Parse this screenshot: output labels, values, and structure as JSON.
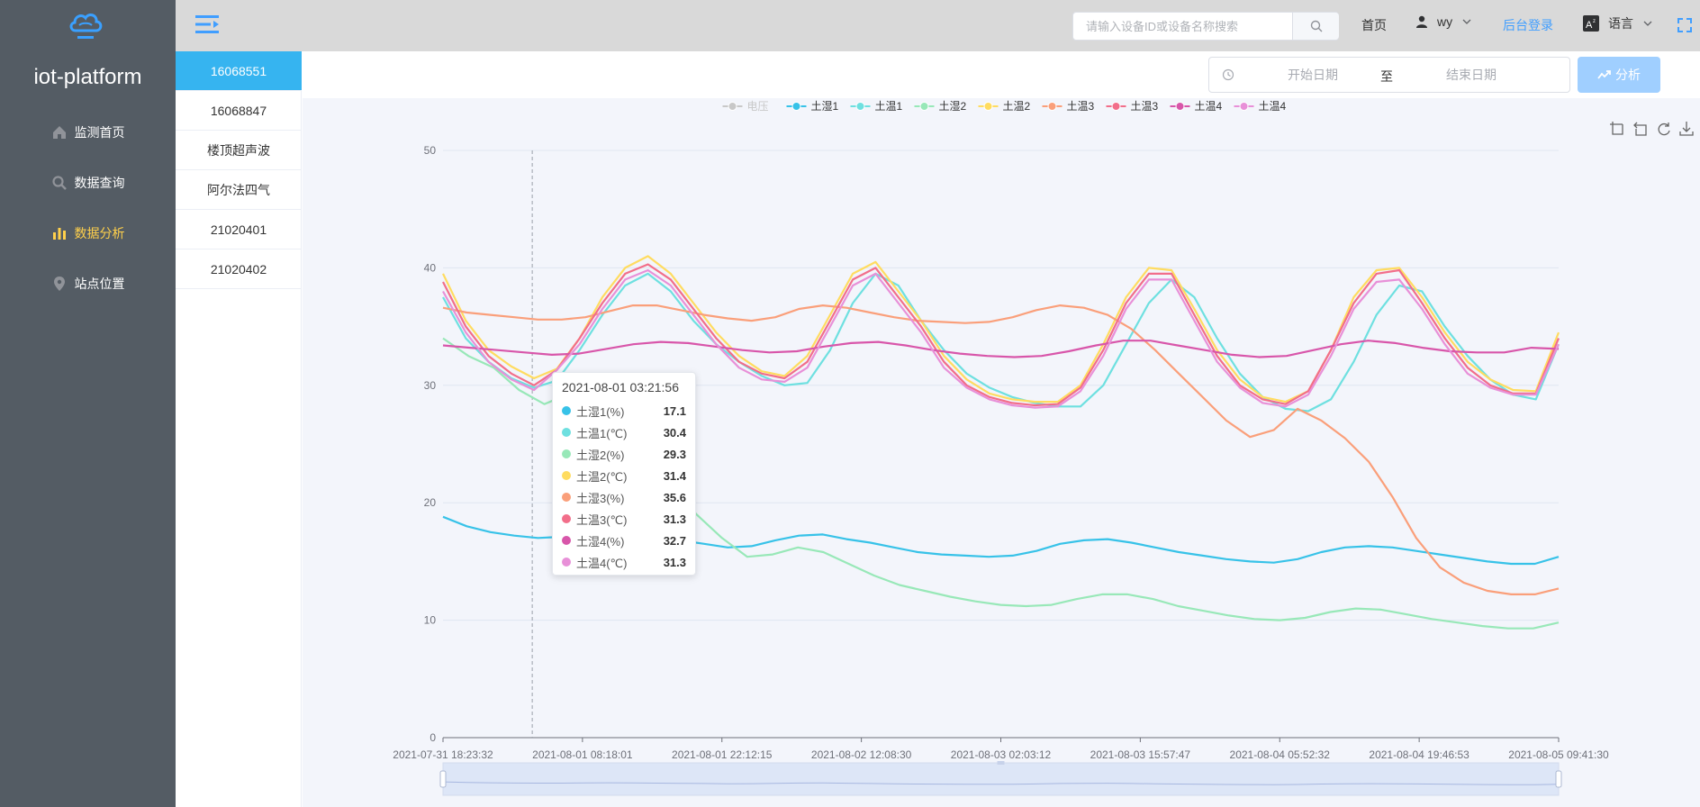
{
  "app": {
    "title": "iot-platform"
  },
  "sidebar": {
    "items": [
      {
        "label": "监测首页",
        "icon": "home-icon"
      },
      {
        "label": "数据查询",
        "icon": "search-icon"
      },
      {
        "label": "数据分析",
        "icon": "bar-chart-icon",
        "active": true
      },
      {
        "label": "站点位置",
        "icon": "location-pin-icon"
      }
    ]
  },
  "header": {
    "search_placeholder": "请输入设备ID或设备名称搜索",
    "home_label": "首页",
    "user_name": "wy",
    "admin_label": "后台登录",
    "language_label": "语言"
  },
  "devices": {
    "items": [
      {
        "label": "16068551",
        "active": true
      },
      {
        "label": "16068847"
      },
      {
        "label": "楼顶超声波"
      },
      {
        "label": "阿尔法四气"
      },
      {
        "label": "21020401"
      },
      {
        "label": "21020402"
      }
    ]
  },
  "toolbar": {
    "start_placeholder": "开始日期",
    "separator": "至",
    "end_placeholder": "结束日期",
    "analyze_label": "分析"
  },
  "colors": {
    "accent": "#409eff",
    "sidebar_bg": "#545c64",
    "active_menu": "#ffd04b",
    "active_device": "#36b4f0"
  },
  "chart_data": {
    "type": "line",
    "legend_position": "top-center",
    "grid": true,
    "ylim": [
      0,
      50
    ],
    "y_ticks": [
      0,
      10,
      20,
      30,
      40,
      50
    ],
    "x_ticks": [
      "2021-07-31 18:23:32",
      "2021-08-01 08:18:01",
      "2021-08-01 22:12:15",
      "2021-08-02 12:08:30",
      "2021-08-03 02:03:12",
      "2021-08-03 15:57:47",
      "2021-08-04 05:52:32",
      "2021-08-04 19:46:53",
      "2021-08-05 09:41:30"
    ],
    "legend": [
      {
        "name": "电压",
        "color": "#c8c8c8",
        "disabled": true
      },
      {
        "name": "土湿1",
        "color": "#37c2e8"
      },
      {
        "name": "土温1",
        "color": "#6ee0e0"
      },
      {
        "name": "土湿2",
        "color": "#98e8b8"
      },
      {
        "name": "土温2",
        "color": "#ffdc60"
      },
      {
        "name": "土温3",
        "color": "#fa9f7a"
      },
      {
        "name": "土温3",
        "color": "#f26e8a"
      },
      {
        "name": "土温4",
        "color": "#d856aa"
      },
      {
        "name": "土温4",
        "color": "#e890d8"
      }
    ],
    "series": [
      {
        "key": "s1",
        "color": "#37c2e8",
        "values": [
          18.8,
          18.0,
          17.5,
          17.2,
          17.0,
          17.1,
          17.3,
          17.5,
          17.3,
          17.0,
          16.8,
          16.5,
          16.2,
          16.3,
          16.8,
          17.2,
          17.3,
          16.9,
          16.6,
          16.2,
          15.8,
          15.6,
          15.5,
          15.4,
          15.5,
          15.9,
          16.5,
          16.8,
          16.9,
          16.6,
          16.2,
          15.8,
          15.5,
          15.2,
          15.0,
          14.9,
          15.2,
          15.8,
          16.2,
          16.3,
          16.2,
          15.9,
          15.6,
          15.3,
          15.0,
          14.8,
          14.8,
          15.4
        ]
      },
      {
        "key": "s2",
        "color": "#6ee0e0",
        "values": [
          37.5,
          34.0,
          32.0,
          30.6,
          29.8,
          30.4,
          33.0,
          36.0,
          38.5,
          39.5,
          38.0,
          35.5,
          33.5,
          32.0,
          30.8,
          30.0,
          30.2,
          33.0,
          37.0,
          39.5,
          38.5,
          35.5,
          33.0,
          31.0,
          29.8,
          29.0,
          28.5,
          28.2,
          28.2,
          30.0,
          33.5,
          37.0,
          39.0,
          37.5,
          34.0,
          31.0,
          29.0,
          28.0,
          27.8,
          28.8,
          32.0,
          36.0,
          38.5,
          38.0,
          35.0,
          32.5,
          30.5,
          29.2,
          28.8,
          33.5
        ]
      },
      {
        "key": "s3",
        "color": "#98e8b8",
        "values": [
          34.0,
          32.5,
          31.5,
          29.6,
          28.4,
          29.3,
          29.8,
          26.5,
          24.0,
          21.5,
          19.0,
          17.0,
          15.4,
          15.6,
          16.2,
          15.8,
          14.8,
          13.8,
          13.0,
          12.5,
          12.0,
          11.6,
          11.3,
          11.2,
          11.3,
          11.8,
          12.2,
          12.2,
          11.8,
          11.2,
          10.8,
          10.4,
          10.1,
          10.0,
          10.2,
          10.7,
          11.0,
          10.9,
          10.5,
          10.1,
          9.8,
          9.5,
          9.3,
          9.3,
          9.8
        ]
      },
      {
        "key": "s4",
        "color": "#ffdc60",
        "values": [
          39.5,
          35.5,
          33.0,
          31.6,
          30.6,
          31.4,
          34.0,
          37.5,
          40.0,
          41.0,
          39.5,
          37.0,
          34.5,
          32.5,
          31.2,
          30.8,
          32.5,
          36.0,
          39.5,
          40.5,
          38.0,
          35.5,
          32.5,
          30.5,
          29.3,
          28.8,
          28.6,
          28.6,
          30.0,
          33.5,
          37.5,
          40.0,
          39.8,
          36.5,
          33.0,
          30.5,
          29.0,
          28.6,
          29.5,
          33.0,
          37.5,
          39.8,
          40.0,
          37.5,
          34.5,
          32.0,
          30.5,
          29.6,
          29.5,
          34.5
        ]
      },
      {
        "key": "s5",
        "color": "#fa9f7a",
        "values": [
          36.6,
          36.2,
          36.0,
          35.8,
          35.6,
          35.6,
          35.8,
          36.3,
          36.8,
          36.8,
          36.4,
          36.0,
          35.7,
          35.5,
          35.8,
          36.5,
          36.8,
          36.6,
          36.2,
          35.8,
          35.5,
          35.4,
          35.3,
          35.4,
          35.8,
          36.4,
          36.8,
          36.6,
          36.0,
          34.8,
          33.0,
          31.0,
          29.0,
          27.0,
          25.6,
          26.2,
          28.0,
          27.0,
          25.5,
          23.5,
          20.5,
          17.0,
          14.5,
          13.2,
          12.5,
          12.2,
          12.2,
          12.7
        ]
      },
      {
        "key": "s6",
        "color": "#f26e8a",
        "values": [
          38.8,
          35.0,
          32.5,
          31.0,
          30.0,
          31.3,
          34.0,
          37.0,
          39.5,
          40.3,
          39.0,
          36.5,
          34.0,
          32.0,
          31.0,
          30.6,
          32.0,
          35.5,
          39.0,
          40.0,
          37.5,
          35.0,
          32.0,
          30.0,
          29.0,
          28.5,
          28.3,
          28.4,
          29.8,
          33.0,
          37.0,
          39.5,
          39.5,
          36.0,
          32.5,
          30.0,
          28.8,
          28.4,
          29.5,
          33.0,
          37.0,
          39.5,
          39.8,
          37.0,
          34.0,
          31.5,
          30.0,
          29.3,
          29.3,
          34.0
        ]
      },
      {
        "key": "s7",
        "color": "#d856aa",
        "values": [
          33.4,
          33.2,
          33.0,
          32.8,
          32.6,
          32.7,
          33.1,
          33.5,
          33.7,
          33.6,
          33.3,
          33.0,
          32.8,
          32.9,
          33.3,
          33.6,
          33.7,
          33.4,
          33.0,
          32.7,
          32.5,
          32.4,
          32.5,
          32.9,
          33.4,
          33.8,
          33.8,
          33.4,
          33.0,
          32.6,
          32.4,
          32.5,
          33.0,
          33.5,
          33.8,
          33.6,
          33.2,
          32.9,
          32.8,
          32.8,
          33.2,
          33.1
        ]
      },
      {
        "key": "s8",
        "color": "#e890d8",
        "values": [
          38.0,
          34.5,
          32.0,
          30.5,
          29.6,
          31.3,
          33.5,
          36.5,
          39.0,
          39.8,
          38.5,
          36.0,
          33.5,
          31.5,
          30.5,
          30.3,
          31.5,
          35.0,
          38.5,
          39.5,
          37.0,
          34.5,
          31.5,
          29.8,
          28.8,
          28.3,
          28.1,
          28.2,
          29.5,
          32.5,
          36.5,
          39.0,
          39.0,
          35.5,
          32.0,
          29.8,
          28.5,
          28.2,
          29.2,
          32.5,
          36.5,
          38.8,
          39.0,
          36.5,
          33.5,
          31.0,
          29.8,
          29.2,
          29.2,
          33.5
        ]
      }
    ],
    "dashed_marker_x_fraction": 0.08,
    "tooltip": {
      "title": "2021-08-01 03:21:56",
      "rows": [
        {
          "name": "土湿1(%)",
          "value": "17.1",
          "color": "#37c2e8"
        },
        {
          "name": "土温1(℃)",
          "value": "30.4",
          "color": "#6ee0e0"
        },
        {
          "name": "土湿2(%)",
          "value": "29.3",
          "color": "#98e8b8"
        },
        {
          "name": "土温2(℃)",
          "value": "31.4",
          "color": "#ffdc60"
        },
        {
          "name": "土湿3(%)",
          "value": "35.6",
          "color": "#fa9f7a"
        },
        {
          "name": "土温3(℃)",
          "value": "31.3",
          "color": "#f26e8a"
        },
        {
          "name": "土湿4(%)",
          "value": "32.7",
          "color": "#d856aa"
        },
        {
          "name": "土温4(℃)",
          "value": "31.3",
          "color": "#e890d8"
        }
      ]
    },
    "toolbox": [
      "zoom-icon",
      "zoom-reset-icon",
      "restore-icon",
      "download-icon"
    ]
  }
}
